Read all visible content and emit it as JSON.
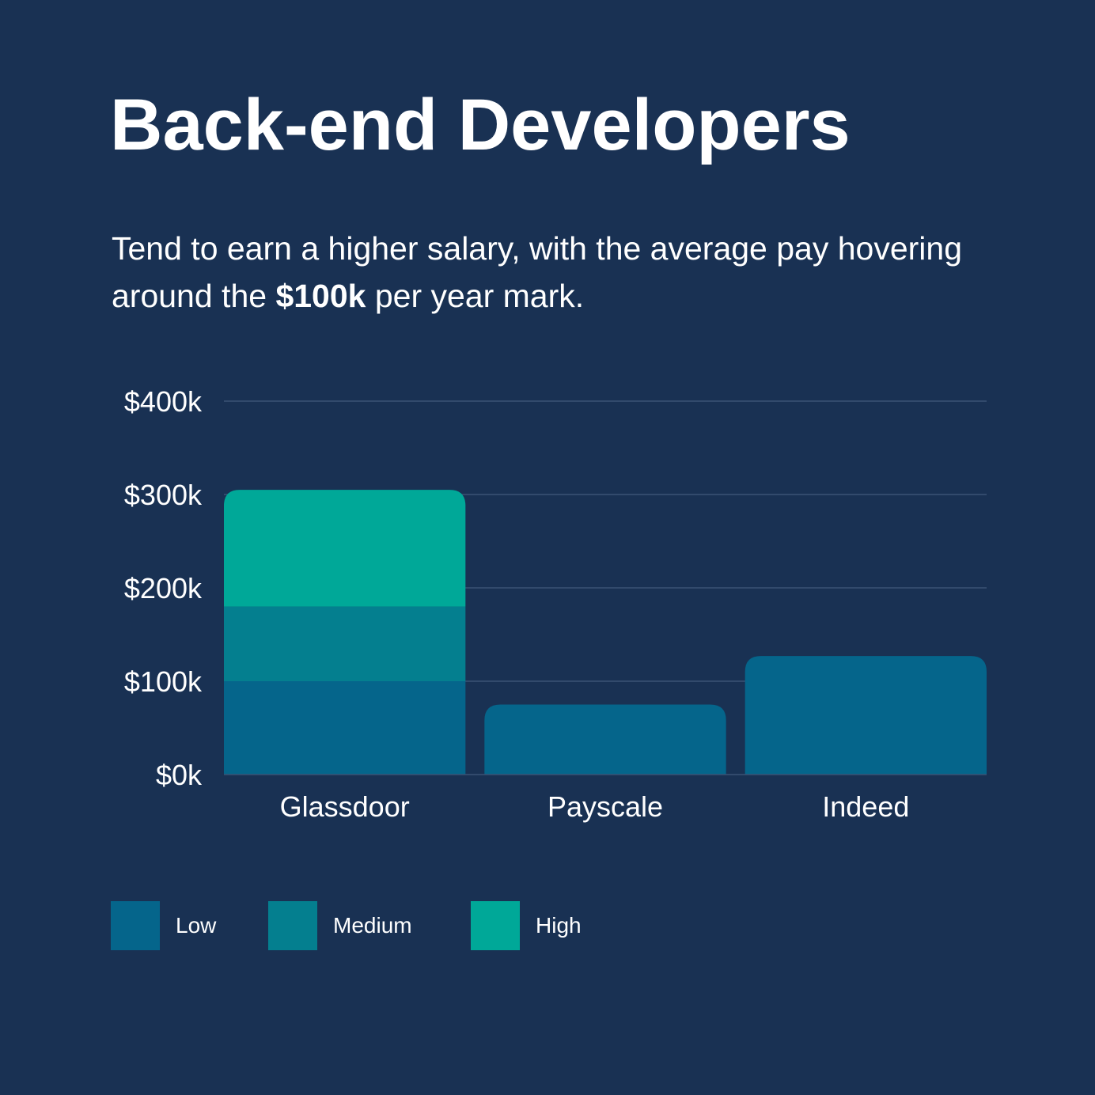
{
  "title": "Back-end Developers",
  "subtitle": {
    "before": "Tend to earn a higher salary, with the average pay hovering around the ",
    "highlight": "$100k",
    "after": " per year mark."
  },
  "colors": {
    "background": "#193153",
    "low": "#05658b",
    "medium": "#047f8f",
    "high": "#00a898",
    "grid": "#3a5274"
  },
  "chart_data": {
    "type": "bar",
    "stacked": true,
    "categories": [
      "Glassdoor",
      "Payscale",
      "Indeed"
    ],
    "series": [
      {
        "name": "Low",
        "values": [
          100,
          75,
          127
        ]
      },
      {
        "name": "Medium",
        "values": [
          80,
          0,
          0
        ]
      },
      {
        "name": "High",
        "values": [
          125,
          0,
          0
        ]
      }
    ],
    "yticks": [
      "$0k",
      "$100k",
      "$200k",
      "$300k",
      "$400k"
    ],
    "ylim": [
      0,
      400
    ],
    "grid": true,
    "legend": "bottom-left"
  },
  "legend": [
    {
      "label": "Low",
      "color": "#05658b"
    },
    {
      "label": "Medium",
      "color": "#047f8f"
    },
    {
      "label": "High",
      "color": "#00a898"
    }
  ]
}
